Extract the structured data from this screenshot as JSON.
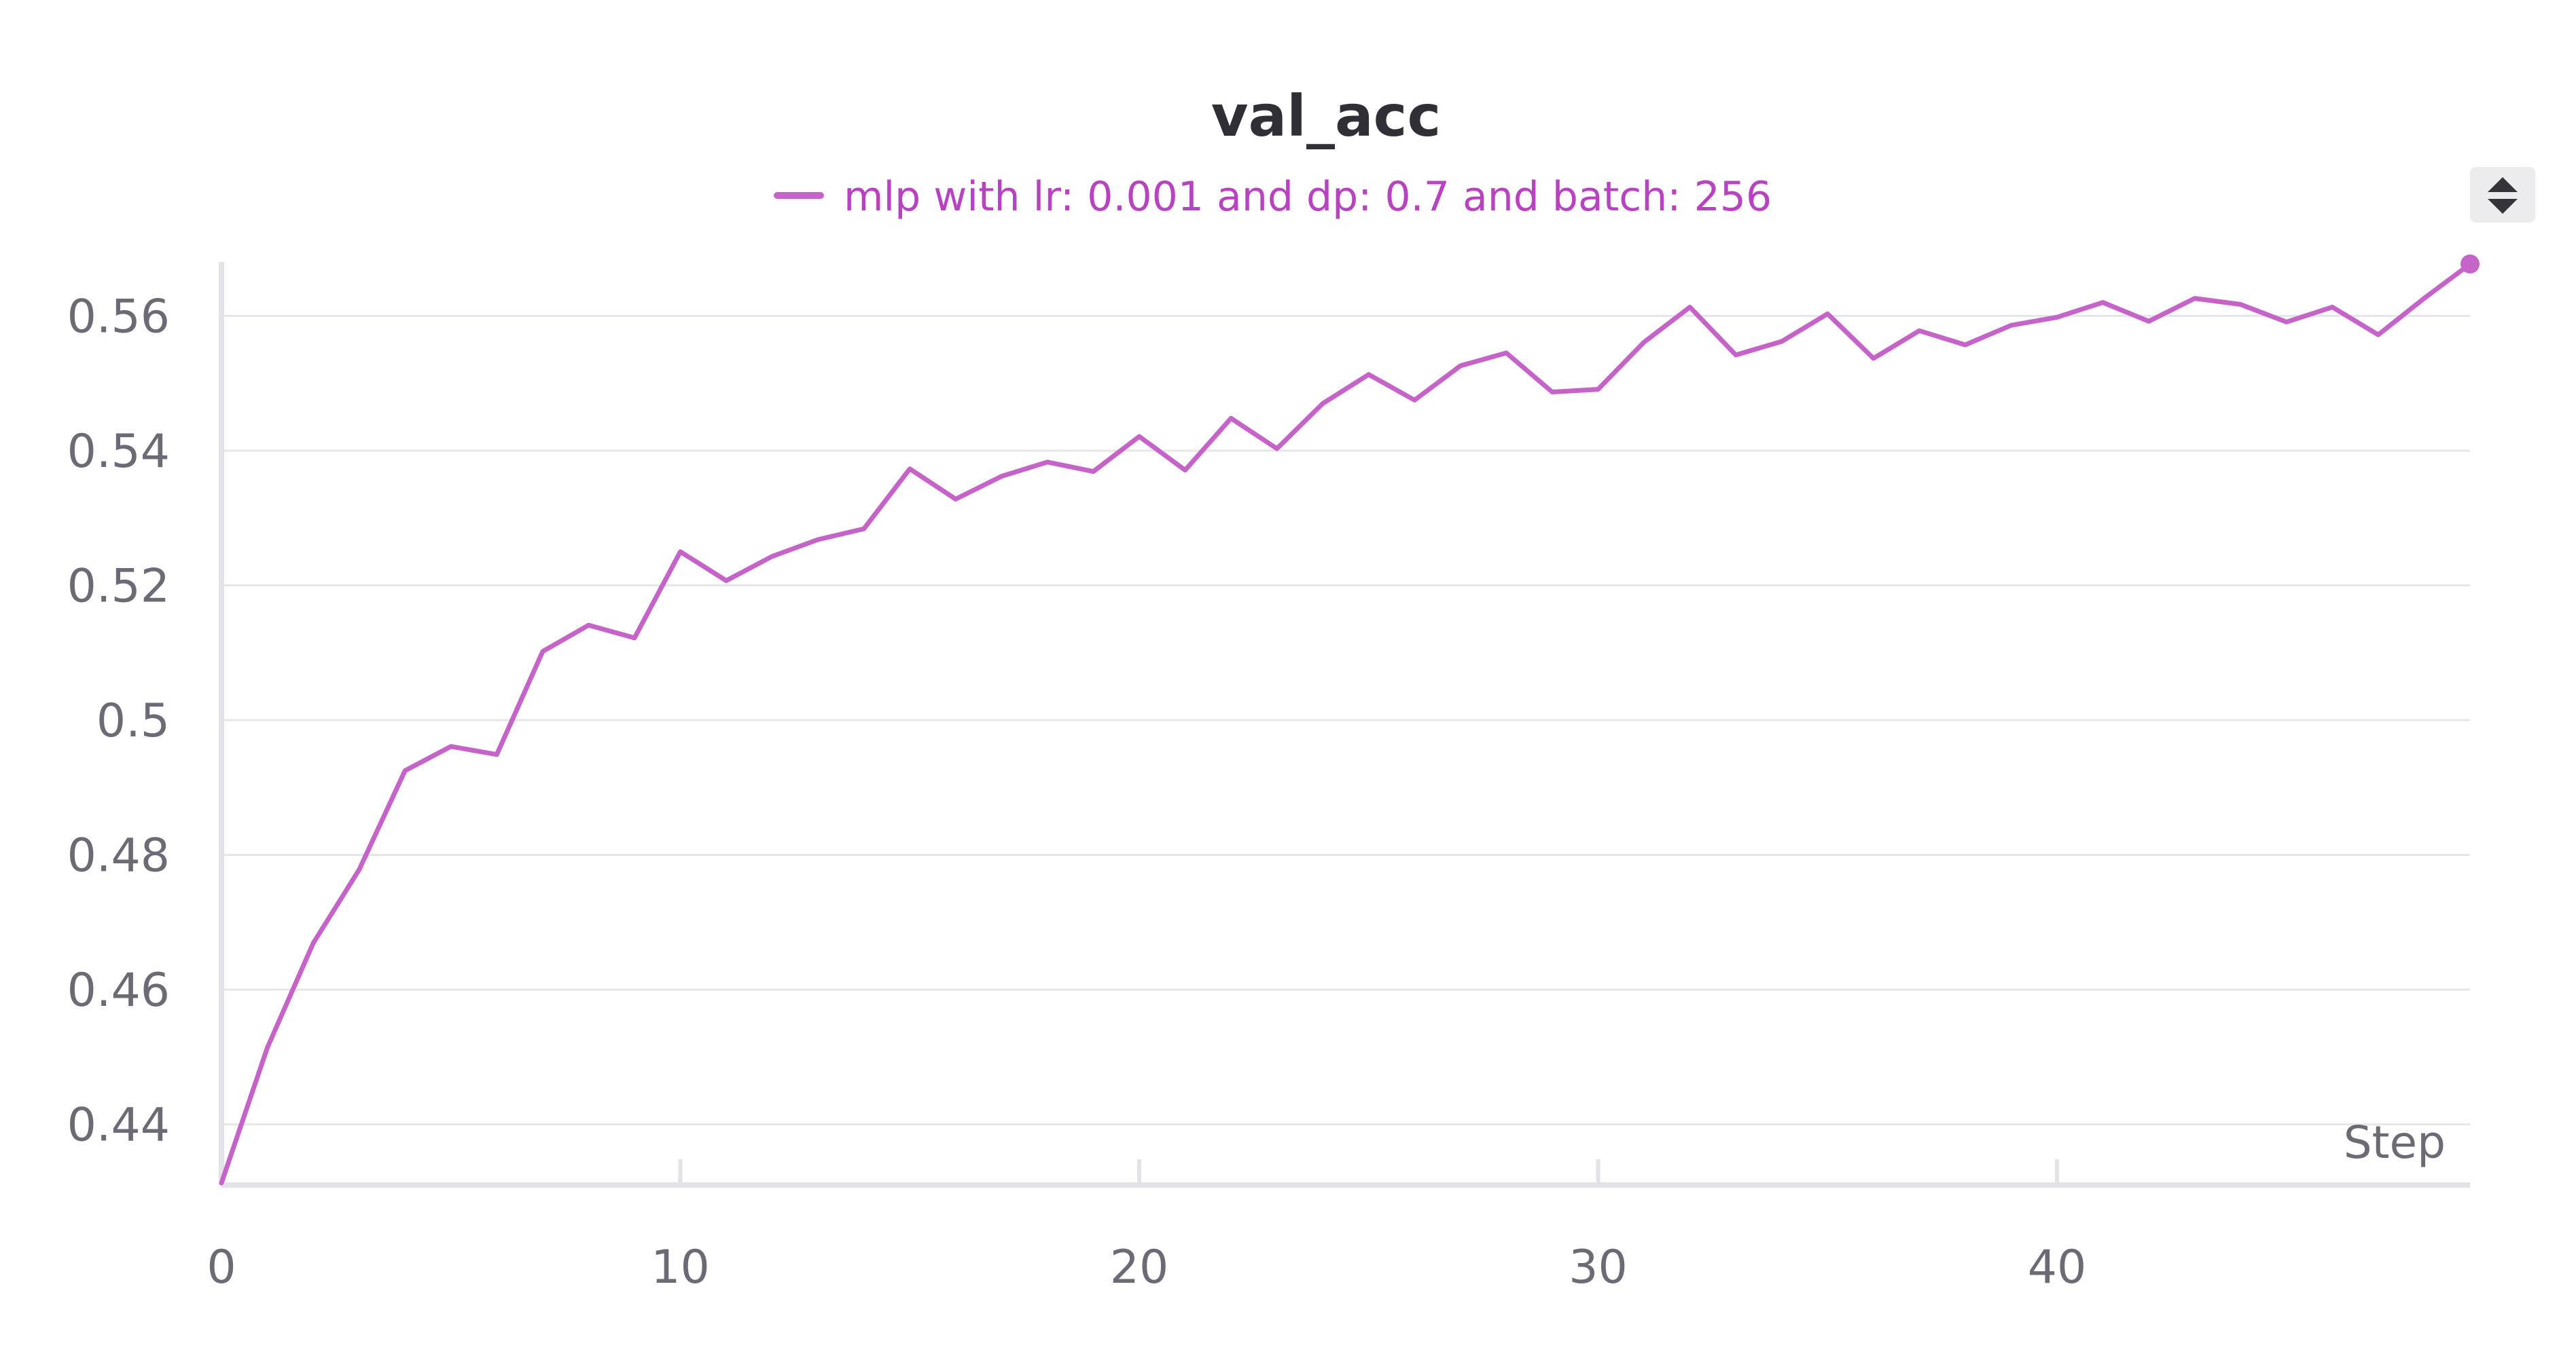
{
  "chart_data": {
    "type": "line",
    "title": "val_acc",
    "xlabel": "Step",
    "ylabel": "",
    "xlim": [
      0,
      49
    ],
    "ylim": [
      0.431,
      0.568
    ],
    "x_ticks": [
      0,
      10,
      20,
      30,
      40
    ],
    "x_tick_labels": [
      "0",
      "10",
      "20",
      "30",
      "40"
    ],
    "y_ticks": [
      0.44,
      0.46,
      0.48,
      0.5,
      0.52,
      0.54,
      0.56
    ],
    "y_tick_labels": [
      "0.44",
      "0.46",
      "0.48",
      "0.5",
      "0.52",
      "0.54",
      "0.56"
    ],
    "grid": true,
    "legend_position": "top-center",
    "series": [
      {
        "name": "mlp with lr: 0.001 and dp: 0.7 and batch: 256",
        "color": "#c663c9",
        "x": [
          0,
          1,
          2,
          3,
          4,
          5,
          6,
          7,
          8,
          9,
          10,
          11,
          12,
          13,
          14,
          15,
          16,
          17,
          18,
          19,
          20,
          21,
          22,
          23,
          24,
          25,
          26,
          27,
          28,
          29,
          30,
          31,
          32,
          33,
          34,
          35,
          36,
          37,
          38,
          39,
          40,
          41,
          42,
          43,
          44,
          45,
          46,
          47,
          48,
          49
        ],
        "values": [
          0.4313,
          0.4514,
          0.4669,
          0.4778,
          0.4925,
          0.4961,
          0.4949,
          0.5102,
          0.5141,
          0.5122,
          0.525,
          0.5207,
          0.5243,
          0.5268,
          0.5284,
          0.5373,
          0.5328,
          0.5362,
          0.5383,
          0.5369,
          0.5421,
          0.5371,
          0.5448,
          0.5403,
          0.547,
          0.5513,
          0.5475,
          0.5526,
          0.5545,
          0.5487,
          0.5491,
          0.5561,
          0.5613,
          0.5542,
          0.5562,
          0.5603,
          0.5537,
          0.5578,
          0.5557,
          0.5586,
          0.5598,
          0.562,
          0.5592,
          0.5626,
          0.5617,
          0.5591,
          0.5613,
          0.5572,
          0.5626,
          0.5677
        ]
      }
    ]
  },
  "legend": {
    "label": "mlp with lr: 0.001 and dp: 0.7 and batch: 256",
    "text_color": "#b842c1",
    "swatch_color": "#c663c9"
  },
  "controls": {
    "legend_scroll_icon": "up-down-arrows-icon"
  }
}
